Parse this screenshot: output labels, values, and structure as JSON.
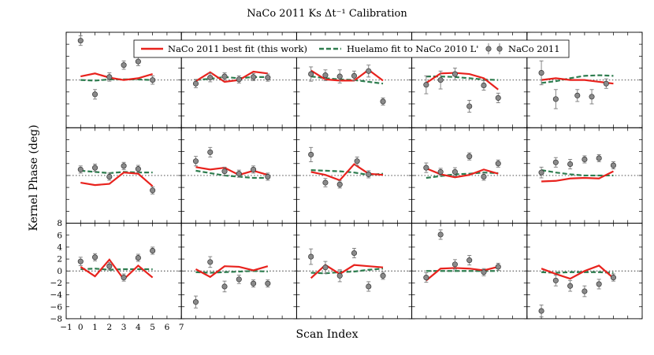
{
  "chart_data": {
    "type": "line",
    "title": "NaCo 2011 Ks Δt⁻¹ Calibration",
    "xlabel": "Scan Index",
    "ylabel": "Kernel Phase (deg)",
    "xlim": [
      -1,
      7
    ],
    "ylim": [
      -8,
      8
    ],
    "xticks": [
      -1,
      0,
      1,
      2,
      3,
      4,
      5,
      6,
      7
    ],
    "yticks": [
      -8,
      -6,
      -4,
      -2,
      0,
      2,
      4,
      6,
      8
    ],
    "grid": "3x5",
    "legend_position": "top",
    "series_names": {
      "fit": "NaCo 2011 best fit (this work)",
      "huelamo": "Huelamo fit to NaCo 2010 L'",
      "data": "NaCo 2011"
    },
    "colors": {
      "fit": "#e8221d",
      "huelamo": "#2e7d4f",
      "data": "#8a8a8a"
    },
    "panels": [
      {
        "row": 0,
        "col": 0,
        "x": [
          0,
          1,
          2,
          3,
          4,
          5
        ],
        "data": [
          6.6,
          -2.4,
          0.5,
          2.5,
          3.1,
          0.0
        ],
        "err": [
          0.8,
          0.8,
          0.7,
          0.7,
          0.7,
          0.7
        ],
        "fit": [
          0.6,
          1.1,
          0.4,
          0.0,
          0.3,
          1.0
        ],
        "huelamo": [
          0.0,
          -0.1,
          0.1,
          0.1,
          0.1,
          0.0
        ]
      },
      {
        "row": 0,
        "col": 1,
        "x": [
          0,
          1,
          2,
          3,
          4,
          5
        ],
        "data": [
          -0.6,
          0.4,
          0.6,
          0.1,
          0.5,
          0.4
        ],
        "err": [
          0.7,
          0.7,
          0.6,
          0.6,
          0.6,
          0.6
        ],
        "fit": [
          -0.2,
          1.3,
          -0.3,
          0.0,
          1.4,
          1.1
        ],
        "huelamo": [
          0.0,
          0.2,
          0.5,
          0.3,
          0.5,
          0.5
        ]
      },
      {
        "row": 0,
        "col": 2,
        "x": [
          0,
          1,
          2,
          3,
          4,
          5
        ],
        "data": [
          1.0,
          0.8,
          0.6,
          0.7,
          1.5,
          -3.6
        ],
        "err": [
          1.2,
          0.9,
          1.1,
          0.8,
          1.0,
          0.6
        ],
        "fit": [
          1.6,
          0.1,
          -0.1,
          -0.1,
          1.7,
          -0.1
        ],
        "huelamo": [
          0.6,
          0.3,
          0.1,
          0.0,
          -0.3,
          -0.6
        ]
      },
      {
        "row": 0,
        "col": 3,
        "x": [
          0,
          1,
          2,
          3,
          4,
          5
        ],
        "data": [
          -0.8,
          0.0,
          1.0,
          -4.4,
          -0.9,
          -3.0
        ],
        "err": [
          1.5,
          1.5,
          1.0,
          1.0,
          0.8,
          0.8
        ],
        "fit": [
          -0.5,
          1.1,
          1.2,
          1.0,
          0.3,
          -1.6
        ],
        "huelamo": [
          0.6,
          0.6,
          0.5,
          0.3,
          0.1,
          0.0
        ]
      },
      {
        "row": 0,
        "col": 4,
        "x": [
          0,
          1,
          2,
          3,
          4,
          5
        ],
        "data": [
          1.2,
          -3.2,
          -2.6,
          -2.8,
          -0.6
        ],
        "x_override": [
          0,
          1,
          2.5,
          3.5,
          4.5
        ],
        "err": [
          2.0,
          1.6,
          1.0,
          1.2,
          0.8
        ],
        "fit": [
          0.0,
          0.3,
          0.0,
          0.0,
          -0.3,
          -0.6
        ],
        "huelamo": [
          -0.5,
          -0.2,
          0.3,
          0.7,
          0.8,
          0.7
        ]
      },
      {
        "row": 1,
        "col": 0,
        "x": [
          0,
          1,
          2,
          3,
          4,
          5
        ],
        "data": [
          1.0,
          1.3,
          -0.2,
          1.6,
          1.1,
          -2.5
        ],
        "err": [
          0.6,
          0.6,
          0.6,
          0.6,
          0.6,
          0.6
        ],
        "fit": [
          -1.2,
          -1.6,
          -1.4,
          0.5,
          0.3,
          -1.8
        ],
        "huelamo": [
          0.8,
          0.6,
          0.4,
          0.6,
          0.5,
          0.5
        ]
      },
      {
        "row": 1,
        "col": 1,
        "x": [
          0,
          1,
          2,
          3,
          4,
          5
        ],
        "data": [
          2.4,
          3.9,
          0.7,
          0.3,
          1.0,
          -0.2
        ],
        "err": [
          0.8,
          0.8,
          0.7,
          0.6,
          0.6,
          0.6
        ],
        "fit": [
          1.4,
          1.0,
          1.3,
          0.1,
          0.8,
          0.1
        ],
        "huelamo": [
          0.8,
          0.4,
          0.0,
          -0.2,
          -0.4,
          -0.4
        ]
      },
      {
        "row": 1,
        "col": 2,
        "x": [
          0,
          1,
          2,
          3,
          4,
          5
        ],
        "data": [
          3.5,
          -1.2,
          -1.5,
          2.4,
          0.2
        ],
        "x_override": [
          0,
          1,
          2,
          3.2,
          4
        ],
        "err": [
          1.2,
          0.7,
          0.6,
          0.7,
          0.6
        ],
        "fit": [
          0.6,
          0.1,
          -0.8,
          1.9,
          0.3,
          0.1
        ],
        "huelamo": [
          0.9,
          0.8,
          0.7,
          0.5,
          0.1,
          0.3
        ]
      },
      {
        "row": 1,
        "col": 3,
        "x": [
          0,
          1,
          2,
          3,
          4,
          5
        ],
        "data": [
          1.3,
          0.6,
          0.6,
          3.2,
          -0.2,
          2.0
        ],
        "err": [
          0.8,
          0.6,
          0.7,
          0.6,
          0.6,
          0.6
        ],
        "fit": [
          1.2,
          0.2,
          -0.3,
          0.1,
          1.0,
          0.3
        ],
        "huelamo": [
          -0.4,
          -0.1,
          0.2,
          0.3,
          0.5,
          0.4
        ]
      },
      {
        "row": 1,
        "col": 4,
        "x": [
          0,
          1,
          2,
          3,
          4,
          5
        ],
        "data": [
          0.5,
          2.2,
          1.9,
          2.7,
          2.9,
          1.7
        ],
        "err": [
          0.9,
          0.8,
          0.8,
          0.6,
          0.6,
          0.6
        ],
        "fit": [
          -1.0,
          -0.9,
          -0.5,
          -0.4,
          -0.5,
          0.7
        ],
        "huelamo": [
          0.9,
          0.5,
          0.2,
          0.0,
          0.0,
          0.0
        ]
      },
      {
        "row": 2,
        "col": 0,
        "x": [
          0,
          1,
          2,
          3,
          4,
          5
        ],
        "data": [
          1.6,
          2.3,
          0.8,
          -1.1,
          2.2,
          3.4
        ],
        "err": [
          0.7,
          0.6,
          0.6,
          0.6,
          0.6,
          0.6
        ],
        "fit": [
          0.7,
          -0.9,
          1.9,
          -1.4,
          0.9,
          -1.1
        ],
        "huelamo": [
          0.3,
          0.4,
          0.2,
          0.3,
          0.3,
          0.3
        ]
      },
      {
        "row": 2,
        "col": 1,
        "x": [
          0,
          1,
          2,
          3,
          4,
          5
        ],
        "data": [
          -5.2,
          1.5,
          -2.6,
          -1.4,
          -2.1,
          -2.1
        ],
        "err": [
          1.0,
          0.9,
          0.9,
          0.7,
          0.6,
          0.6
        ],
        "fit": [
          0.3,
          -1.0,
          0.8,
          0.7,
          0.1,
          0.8
        ],
        "huelamo": [
          -0.2,
          -0.3,
          -0.2,
          -0.1,
          0.0,
          -0.1
        ]
      },
      {
        "row": 2,
        "col": 2,
        "x": [
          0,
          1,
          2,
          3,
          4,
          5
        ],
        "data": [
          2.4,
          0.6,
          -0.8,
          3.0,
          -2.6,
          -0.8
        ],
        "err": [
          1.3,
          1.0,
          1.0,
          0.8,
          0.8,
          0.6
        ],
        "fit": [
          -1.2,
          1.0,
          -0.5,
          1.0,
          0.8,
          0.6
        ],
        "huelamo": [
          -0.3,
          -0.4,
          -0.2,
          -0.1,
          0.2,
          0.4
        ]
      },
      {
        "row": 2,
        "col": 3,
        "x": [
          0,
          1,
          2,
          3,
          4,
          5
        ],
        "data": [
          -1.1,
          6.1,
          1.1,
          1.8,
          -0.2,
          0.7
        ],
        "err": [
          0.8,
          0.8,
          0.8,
          0.8,
          0.6,
          0.6
        ],
        "fit": [
          -1.6,
          0.4,
          0.5,
          0.4,
          0.1,
          0.7
        ],
        "huelamo": [
          0.0,
          0.0,
          0.0,
          0.0,
          0.0,
          0.0
        ]
      },
      {
        "row": 2,
        "col": 4,
        "x": [
          0,
          1,
          2,
          3,
          4,
          5
        ],
        "data": [
          -6.7,
          -1.6,
          -2.5,
          -3.4,
          -2.2,
          -1.1
        ],
        "err": [
          1.0,
          0.9,
          0.9,
          0.9,
          0.8,
          0.6
        ],
        "fit": [
          0.4,
          -0.5,
          -1.3,
          0.0,
          0.9,
          -1.2
        ],
        "huelamo": [
          -0.2,
          -0.3,
          -0.2,
          -0.2,
          -0.2,
          -0.3
        ]
      }
    ]
  }
}
